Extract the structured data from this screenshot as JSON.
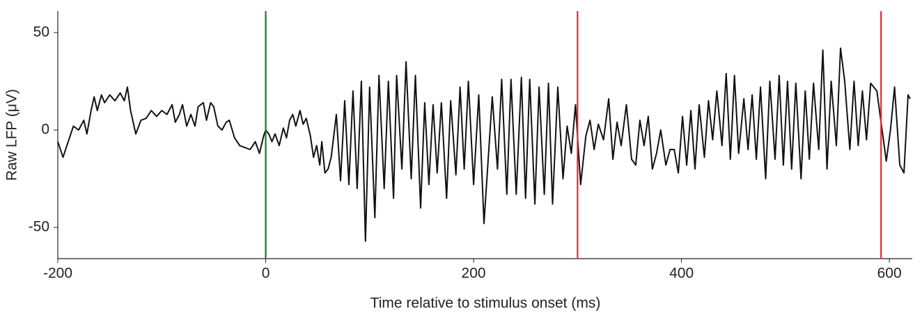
{
  "chart_data": {
    "type": "line",
    "xlabel": "Time relative to stimulus onset (ms)",
    "ylabel": "Raw LFP (μV)",
    "xlim": [
      -200,
      622
    ],
    "ylim": [
      -66,
      61
    ],
    "xticks": [
      -200,
      0,
      200,
      400,
      600
    ],
    "yticks": [
      -50,
      0,
      50
    ],
    "color": "#111111",
    "vlines": [
      {
        "x": 0,
        "color": "#1f7a1f"
      },
      {
        "x": 300,
        "color": "#e8262b"
      },
      {
        "x": 592,
        "color": "#e8262b"
      }
    ],
    "x": [
      -200,
      -195,
      -190,
      -185,
      -180,
      -175,
      -172,
      -168,
      -165,
      -162,
      -158,
      -155,
      -150,
      -145,
      -140,
      -136,
      -133,
      -130,
      -125,
      -120,
      -115,
      -110,
      -105,
      -100,
      -95,
      -90,
      -87,
      -83,
      -80,
      -76,
      -72,
      -68,
      -65,
      -60,
      -57,
      -53,
      -50,
      -46,
      -42,
      -38,
      -35,
      -30,
      -25,
      -20,
      -15,
      -10,
      -6,
      -2,
      0,
      3,
      6,
      9,
      13,
      17,
      20,
      23,
      26,
      29,
      33,
      36,
      39,
      43,
      46,
      49,
      52,
      54,
      57,
      60,
      63,
      68,
      72,
      76,
      80,
      84,
      88,
      92,
      96,
      100,
      105,
      109,
      114,
      118,
      123,
      126,
      131,
      135,
      140,
      144,
      149,
      153,
      157,
      161,
      165,
      169,
      174,
      178,
      183,
      187,
      191,
      195,
      200,
      205,
      210,
      218,
      223,
      227,
      232,
      236,
      241,
      246,
      250,
      254,
      259,
      263,
      268,
      272,
      276,
      281,
      286,
      290,
      294,
      298,
      303,
      308,
      312,
      316,
      320,
      325,
      330,
      334,
      338,
      342,
      347,
      352,
      356,
      360,
      364,
      368,
      372,
      376,
      380,
      385,
      389,
      393,
      397,
      401,
      405,
      409,
      413,
      417,
      422,
      426,
      430,
      434,
      439,
      443,
      447,
      451,
      455,
      460,
      464,
      468,
      472,
      476,
      481,
      485,
      490,
      494,
      498,
      502,
      506,
      510,
      515,
      519,
      523,
      527,
      532,
      536,
      540,
      544,
      549,
      553,
      557,
      562,
      566,
      570,
      574,
      578,
      582,
      588,
      593,
      597,
      601,
      605,
      610,
      614,
      618,
      620
    ],
    "values": [
      -6,
      -14,
      -6,
      2,
      0,
      5,
      -2,
      10,
      17,
      10,
      18,
      14,
      18,
      15,
      19,
      15,
      22,
      10,
      -2,
      5,
      6,
      10,
      7,
      10,
      8,
      13,
      4,
      8,
      13,
      2,
      8,
      2,
      12,
      14,
      5,
      14,
      12,
      2,
      0,
      4,
      5,
      -4,
      -8,
      -9,
      -10,
      -6,
      -12,
      -3,
      0,
      -2,
      -6,
      -2,
      -8,
      1,
      -4,
      5,
      8,
      2,
      10,
      3,
      6,
      -3,
      -14,
      -8,
      -18,
      -6,
      -22,
      -20,
      -14,
      8,
      -26,
      15,
      -28,
      20,
      -30,
      25,
      -57,
      22,
      -45,
      28,
      -30,
      25,
      -35,
      28,
      -20,
      35,
      -25,
      28,
      -40,
      14,
      -28,
      13,
      -22,
      14,
      -35,
      15,
      -23,
      22,
      -20,
      25,
      -28,
      18,
      -48,
      17,
      -20,
      26,
      -33,
      26,
      -33,
      27,
      -35,
      26,
      -38,
      22,
      -33,
      24,
      -38,
      22,
      -25,
      2,
      -12,
      13,
      -28,
      -3,
      5,
      -10,
      3,
      -5,
      16,
      -15,
      4,
      -8,
      13,
      -15,
      -18,
      5,
      -8,
      7,
      -20,
      -12,
      0,
      -18,
      -10,
      -10,
      -22,
      7,
      -18,
      10,
      -20,
      13,
      -14,
      15,
      -5,
      20,
      -8,
      29,
      -15,
      28,
      -12,
      16,
      -10,
      18,
      -15,
      22,
      -25,
      25,
      -15,
      28,
      -18,
      25,
      -20,
      24,
      -25,
      20,
      -15,
      24,
      -10,
      41,
      -20,
      25,
      -8,
      42,
      25,
      -10,
      25,
      -8,
      20,
      -5,
      24,
      20,
      0,
      -16,
      0,
      22,
      -18,
      -22,
      18,
      16
    ]
  }
}
